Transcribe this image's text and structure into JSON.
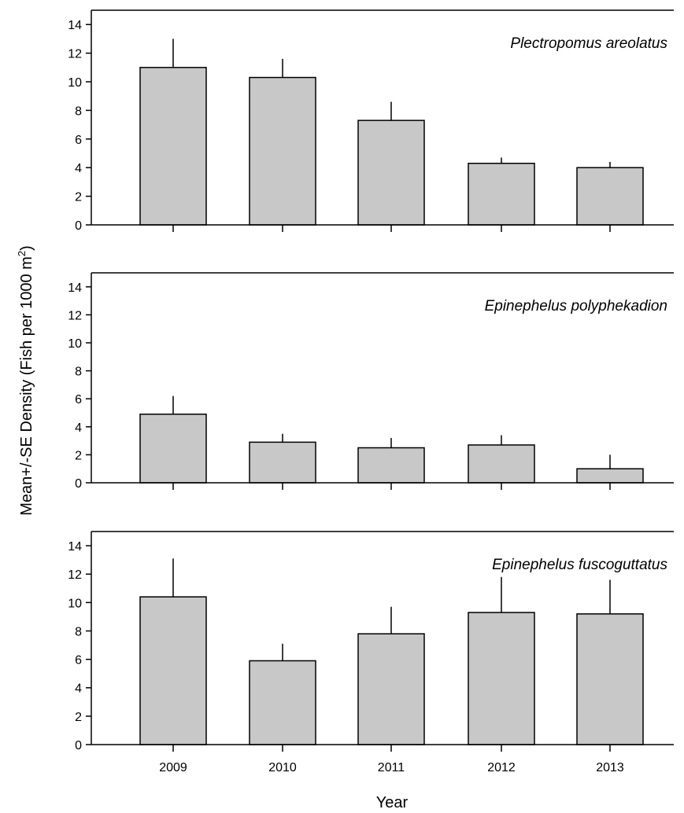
{
  "chart_data": [
    {
      "type": "bar",
      "title": "Plectropomus areolatus",
      "categories": [
        "2009",
        "2010",
        "2011",
        "2012",
        "2013"
      ],
      "values": [
        11.0,
        10.3,
        7.3,
        4.3,
        4.0
      ],
      "error_upper": [
        13.0,
        11.6,
        8.6,
        4.7,
        4.4
      ],
      "ylim": [
        0,
        15
      ],
      "yticks": [
        "0",
        "2",
        "4",
        "6",
        "8",
        "10",
        "12",
        "14"
      ],
      "bar_color": "#c8c8c8"
    },
    {
      "type": "bar",
      "title": "Epinephelus polyphekadion",
      "categories": [
        "2009",
        "2010",
        "2011",
        "2012",
        "2013"
      ],
      "values": [
        4.9,
        2.9,
        2.5,
        2.7,
        1.0
      ],
      "error_upper": [
        6.2,
        3.5,
        3.2,
        3.4,
        2.0
      ],
      "ylim": [
        0,
        15
      ],
      "yticks": [
        "0",
        "2",
        "4",
        "6",
        "8",
        "10",
        "12",
        "14"
      ],
      "bar_color": "#c8c8c8"
    },
    {
      "type": "bar",
      "title": "Epinephelus fuscoguttatus",
      "categories": [
        "2009",
        "2010",
        "2011",
        "2012",
        "2013"
      ],
      "values": [
        10.4,
        5.9,
        7.8,
        9.3,
        9.2
      ],
      "error_upper": [
        13.1,
        7.1,
        9.7,
        11.8,
        11.6
      ],
      "ylim": [
        0,
        15
      ],
      "yticks": [
        "0",
        "2",
        "4",
        "6",
        "8",
        "10",
        "12",
        "14"
      ],
      "bar_color": "#c8c8c8"
    }
  ],
  "axes": {
    "xlabel": "Year",
    "ylabel_main": "Mean+/-SE Density (Fish per 1000 m",
    "ylabel_sup": "2",
    "ylabel_end": ")"
  }
}
